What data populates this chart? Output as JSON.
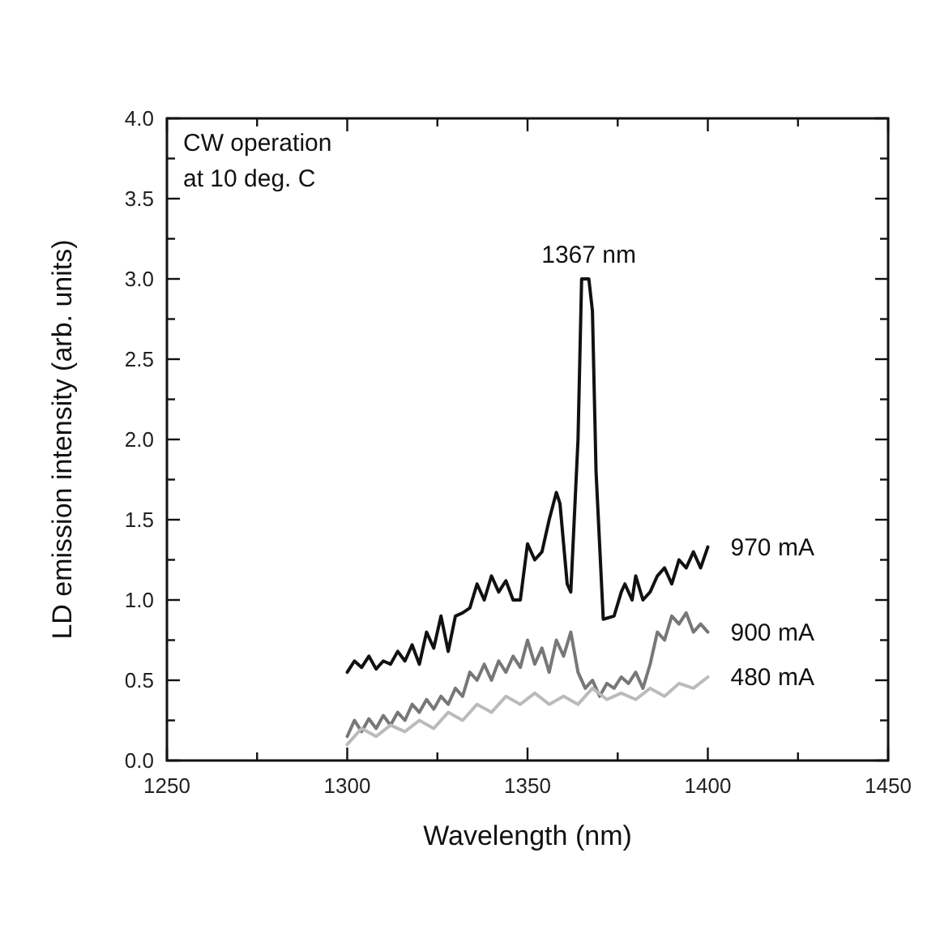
{
  "chart_data": {
    "type": "line",
    "xlabel": "Wavelength (nm)",
    "ylabel": "LD emission intensity (arb. units)",
    "xlim": [
      1250,
      1450
    ],
    "xticks": [
      1250,
      {
        "value": 1275,
        "label": null
      },
      1300,
      {
        "value": 1325,
        "label": null
      },
      1350,
      {
        "value": 1375,
        "label": null
      },
      1400,
      {
        "value": 1425,
        "label": null
      },
      1450
    ],
    "ylim": [
      0,
      4
    ],
    "yticks": [
      {
        "value": 0,
        "label": "0.0"
      },
      {
        "value": 0.25,
        "label": null
      },
      {
        "value": 0.5,
        "label": "0.5"
      },
      {
        "value": 0.75,
        "label": null
      },
      {
        "value": 1,
        "label": "1.0"
      },
      {
        "value": 1.25,
        "label": null
      },
      {
        "value": 1.5,
        "label": "1.5"
      },
      {
        "value": 1.75,
        "label": null
      },
      {
        "value": 2,
        "label": "2.0"
      },
      {
        "value": 2.25,
        "label": null
      },
      {
        "value": 2.5,
        "label": "2.5"
      },
      {
        "value": 2.75,
        "label": null
      },
      {
        "value": 3,
        "label": "3.0"
      },
      {
        "value": 3.25,
        "label": null
      },
      {
        "value": 3.5,
        "label": "3.5"
      },
      {
        "value": 3.75,
        "label": null
      },
      {
        "value": 4,
        "label": "4.0"
      }
    ],
    "grid": false,
    "marker": "none",
    "line_style": "solid",
    "annotations": [
      "CW operation",
      "at 10 deg. C",
      {
        "text": "1367 nm",
        "x": 1367,
        "y": 3
      }
    ],
    "series": [
      {
        "name": "970 mA",
        "color": "#111111",
        "x": [
          1300,
          1302,
          1304,
          1306,
          1308,
          1310,
          1312,
          1314,
          1316,
          1318,
          1320,
          1322,
          1324,
          1326,
          1328,
          1330,
          1332,
          1334,
          1336,
          1338,
          1340,
          1342,
          1344,
          1346,
          1348,
          1350,
          1352,
          1354,
          1356,
          1358,
          1359,
          1361,
          1362,
          1364,
          1365,
          1367,
          1368,
          1369,
          1371,
          1374,
          1376,
          1377,
          1379,
          1380,
          1382,
          1384,
          1386,
          1388,
          1390,
          1392,
          1394,
          1396,
          1398,
          1400
        ],
        "values": [
          0.55,
          0.62,
          0.58,
          0.65,
          0.57,
          0.62,
          0.6,
          0.68,
          0.62,
          0.72,
          0.6,
          0.8,
          0.7,
          0.9,
          0.68,
          0.9,
          0.92,
          0.95,
          1.1,
          1.0,
          1.15,
          1.05,
          1.12,
          1.0,
          1.0,
          1.35,
          1.25,
          1.3,
          1.5,
          1.67,
          1.6,
          1.1,
          1.05,
          2.0,
          3.0,
          3.0,
          2.8,
          1.8,
          0.88,
          0.9,
          1.05,
          1.1,
          1.0,
          1.15,
          1.0,
          1.05,
          1.15,
          1.2,
          1.1,
          1.25,
          1.2,
          1.3,
          1.2,
          1.33
        ]
      },
      {
        "name": "900 mA",
        "color": "#777777",
        "x": [
          1300,
          1302,
          1304,
          1306,
          1308,
          1310,
          1312,
          1314,
          1316,
          1318,
          1320,
          1322,
          1324,
          1326,
          1328,
          1330,
          1332,
          1334,
          1336,
          1338,
          1340,
          1342,
          1344,
          1346,
          1348,
          1350,
          1352,
          1354,
          1356,
          1358,
          1360,
          1362,
          1364,
          1366,
          1368,
          1370,
          1372,
          1374,
          1376,
          1378,
          1380,
          1382,
          1384,
          1386,
          1388,
          1390,
          1392,
          1394,
          1396,
          1398,
          1400
        ],
        "values": [
          0.15,
          0.25,
          0.18,
          0.26,
          0.2,
          0.28,
          0.22,
          0.3,
          0.25,
          0.35,
          0.3,
          0.38,
          0.32,
          0.4,
          0.35,
          0.45,
          0.4,
          0.55,
          0.5,
          0.6,
          0.5,
          0.62,
          0.55,
          0.65,
          0.58,
          0.75,
          0.6,
          0.7,
          0.55,
          0.75,
          0.65,
          0.8,
          0.55,
          0.45,
          0.5,
          0.4,
          0.48,
          0.45,
          0.52,
          0.48,
          0.55,
          0.45,
          0.6,
          0.8,
          0.75,
          0.9,
          0.85,
          0.92,
          0.8,
          0.85,
          0.8
        ]
      },
      {
        "name": "480 mA",
        "color": "#bbbbbb",
        "x": [
          1300,
          1304,
          1308,
          1312,
          1316,
          1320,
          1324,
          1328,
          1332,
          1336,
          1340,
          1344,
          1348,
          1352,
          1356,
          1360,
          1364,
          1368,
          1372,
          1376,
          1380,
          1384,
          1388,
          1392,
          1396,
          1400
        ],
        "values": [
          0.1,
          0.2,
          0.15,
          0.22,
          0.18,
          0.25,
          0.2,
          0.3,
          0.25,
          0.35,
          0.3,
          0.4,
          0.35,
          0.42,
          0.35,
          0.4,
          0.35,
          0.45,
          0.38,
          0.42,
          0.38,
          0.45,
          0.4,
          0.48,
          0.45,
          0.52
        ]
      }
    ]
  }
}
